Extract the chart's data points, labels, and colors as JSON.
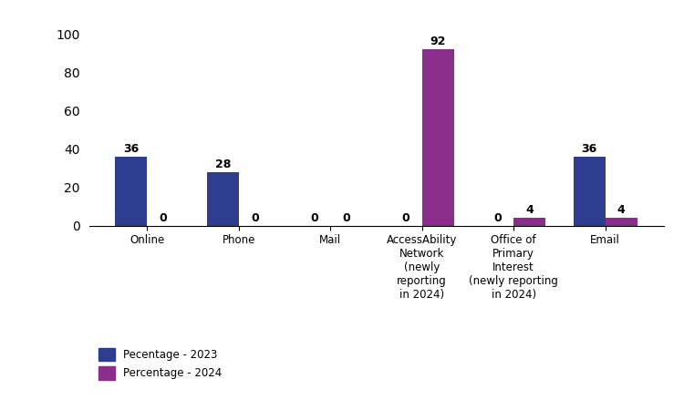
{
  "categories": [
    "Online",
    "Phone",
    "Mail",
    "AccessAbility\nNetwork\n(newly\nreporting\nin 2024)",
    "Office of\nPrimary\nInterest\n(newly reporting\nin 2024)",
    "Email"
  ],
  "values_2023": [
    36,
    28,
    0,
    0,
    0,
    36
  ],
  "values_2024": [
    0,
    0,
    0,
    92,
    4,
    4
  ],
  "color_2023": "#2e3d8f",
  "color_2024": "#8b2e8b",
  "legend_2023": "Pecentage - 2023",
  "legend_2024": "Percentage - 2024",
  "ylim": [
    0,
    107
  ],
  "yticks": [
    0,
    20,
    40,
    60,
    80,
    100
  ],
  "bar_width": 0.35,
  "label_fontsize": 8.5,
  "value_fontsize": 9,
  "background_color": "#ffffff"
}
